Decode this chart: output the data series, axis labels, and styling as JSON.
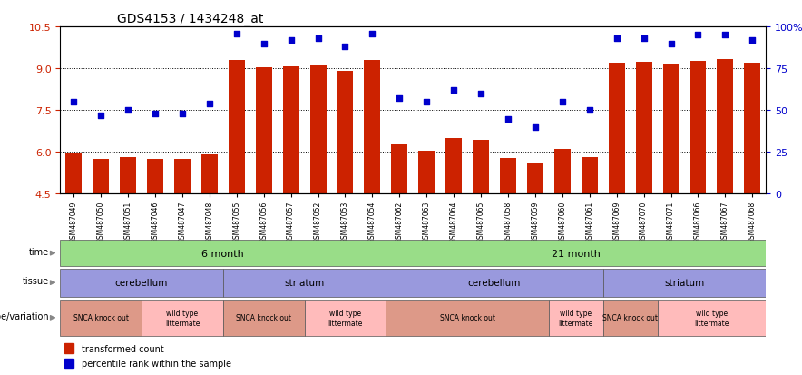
{
  "title": "GDS4153 / 1434248_at",
  "samples": [
    "GSM487049",
    "GSM487050",
    "GSM487051",
    "GSM487046",
    "GSM487047",
    "GSM487048",
    "GSM487055",
    "GSM487056",
    "GSM487057",
    "GSM487052",
    "GSM487053",
    "GSM487054",
    "GSM487062",
    "GSM487063",
    "GSM487064",
    "GSM487065",
    "GSM487058",
    "GSM487059",
    "GSM487060",
    "GSM487061",
    "GSM487069",
    "GSM487070",
    "GSM487071",
    "GSM487066",
    "GSM487067",
    "GSM487068"
  ],
  "bar_values": [
    5.95,
    5.75,
    5.82,
    5.76,
    5.76,
    5.92,
    9.3,
    9.05,
    9.08,
    9.12,
    8.9,
    9.3,
    6.28,
    6.05,
    6.5,
    6.42,
    5.78,
    5.58,
    6.1,
    5.82,
    9.22,
    9.25,
    9.18,
    9.28,
    9.35,
    9.2
  ],
  "dot_values": [
    55,
    47,
    50,
    48,
    48,
    54,
    96,
    90,
    92,
    93,
    88,
    96,
    57,
    55,
    62,
    60,
    45,
    40,
    55,
    50,
    93,
    93,
    90,
    95,
    95,
    92
  ],
  "ymin": 4.5,
  "ymax": 10.5,
  "yticks": [
    4.5,
    6.0,
    7.5,
    9.0,
    10.5
  ],
  "right_yticks": [
    0,
    25,
    50,
    75,
    100
  ],
  "bar_color": "#cc2200",
  "dot_color": "#0000cc",
  "bg_color": "#ffffff",
  "time_labels": [
    "6 month",
    "21 month"
  ],
  "time_color": "#99dd88",
  "tissue_labels": [
    "cerebellum",
    "striatum",
    "cerebellum",
    "striatum"
  ],
  "tissue_color": "#9999dd",
  "genotype_color_ko": "#dd9988",
  "genotype_color_wt": "#ffbbbb",
  "label_color": "#999999"
}
